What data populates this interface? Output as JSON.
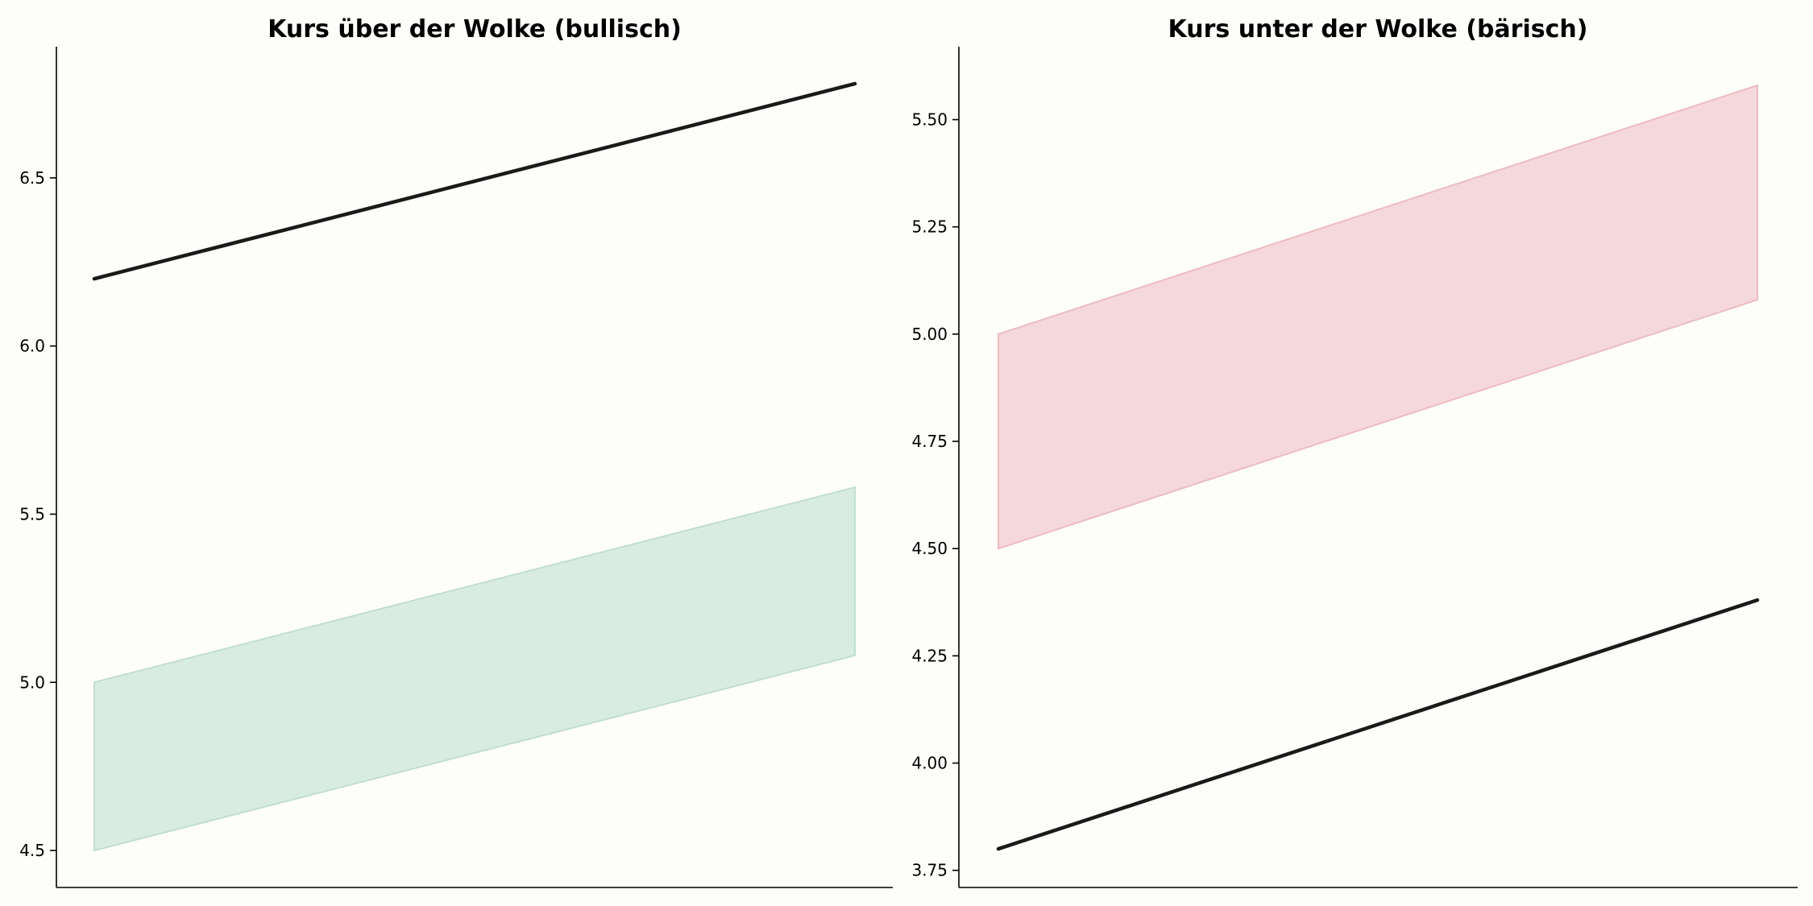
{
  "colors": {
    "background": "#fdfdfa",
    "price_line": "#1a1a1a",
    "cloud_bullish_fill": "#d9ece2",
    "cloud_bullish_edge": "#bfdfcd",
    "cloud_bearish_fill": "#f5d8db",
    "cloud_bearish_edge": "#ecbcc1"
  },
  "chart_data": [
    {
      "type": "line",
      "title": "Kurs über der Wolke (bullisch)",
      "xlabel": "",
      "ylabel": "",
      "grid": false,
      "ylim": [
        4.39,
        6.89
      ],
      "yticks": [
        "4.5",
        "5.0",
        "5.5",
        "6.0",
        "6.5"
      ],
      "ytick_values": [
        4.5,
        5.0,
        5.5,
        6.0,
        6.5
      ],
      "x": [
        0,
        1
      ],
      "price": [
        6.2,
        6.78
      ],
      "cloud_upper": [
        5.0,
        5.58
      ],
      "cloud_lower": [
        4.5,
        5.08
      ],
      "cloud_color": "green"
    },
    {
      "type": "line",
      "title": "Kurs unter der Wolke (bärisch)",
      "xlabel": "",
      "ylabel": "",
      "grid": false,
      "ylim": [
        3.71,
        5.67
      ],
      "yticks": [
        "3.75",
        "4.00",
        "4.25",
        "4.50",
        "4.75",
        "5.00",
        "5.25",
        "5.50"
      ],
      "ytick_values": [
        3.75,
        4.0,
        4.25,
        4.5,
        4.75,
        5.0,
        5.25,
        5.5
      ],
      "x": [
        0,
        1
      ],
      "price": [
        3.8,
        4.38
      ],
      "cloud_upper": [
        5.0,
        5.58
      ],
      "cloud_lower": [
        4.5,
        5.08
      ],
      "cloud_color": "red"
    }
  ]
}
